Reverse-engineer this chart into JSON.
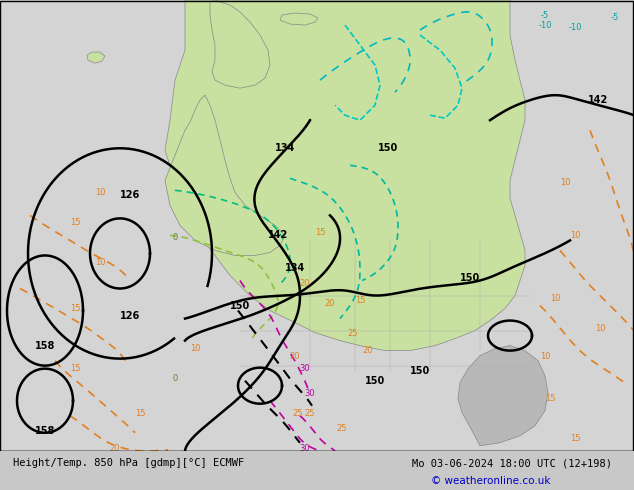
{
  "title_left": "Height/Temp. 850 hPa [gdmp][°C] ECMWF",
  "title_right": "Mo 03-06-2024 18:00 UTC (12+198)",
  "copyright": "© weatheronline.co.uk",
  "bg_color": "#d0d0d0",
  "land_color_light": "#c8e6a0",
  "land_color_green": "#b8dc80",
  "ocean_color": "#e8e8e8",
  "fig_width": 6.34,
  "fig_height": 4.9,
  "dpi": 100
}
